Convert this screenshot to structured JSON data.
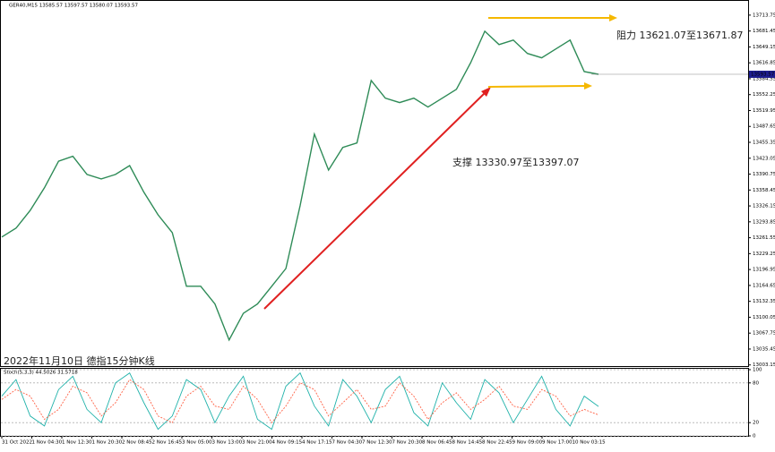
{
  "chart_data": [
    {
      "type": "line",
      "title": "GER40,M15 13585.57 13597.57 13580.07 13593.57",
      "series": [
        {
          "color": "#2e8b57",
          "values": [
            13263,
            13281,
            13317,
            13363,
            13417,
            13427,
            13390,
            13381,
            13390,
            13408,
            13354,
            13308,
            13272,
            13163,
            13163,
            13127,
            13054,
            13108,
            13127,
            13163,
            13199,
            13327,
            13472,
            13399,
            13445,
            13454,
            13581,
            13545,
            13536,
            13545,
            13527,
            13545,
            13563,
            13617,
            13681,
            13654,
            13663,
            13636,
            13627,
            13645,
            13663,
            13599,
            13593.57
          ]
        }
      ],
      "last_price": 13593.57,
      "x_labels": [
        "31 Oct 2022",
        "1 Nov 04:30",
        "1 Nov 12:30",
        "1 Nov 20:30",
        "2 Nov 08:45",
        "2 Nov 16:45",
        "3 Nov 05:00",
        "3 Nov 13:00",
        "3 Nov 21:00",
        "4 Nov 09:15",
        "4 Nov 17:15",
        "7 Nov 04:30",
        "7 Nov 12:30",
        "7 Nov 20:30",
        "8 Nov 06:45",
        "8 Nov 14:45",
        "8 Nov 22:45",
        "9 Nov 09:00",
        "9 Nov 17:00",
        "10 Nov 03:15"
      ],
      "ylim": [
        12999,
        13739
      ],
      "yticks": [
        13713.75,
        13681.45,
        13649.15,
        13616.85,
        13584.55,
        13552.25,
        13519.95,
        13487.65,
        13455.35,
        13423.05,
        13390.75,
        13358.45,
        13326.15,
        13293.85,
        13261.55,
        13229.25,
        13196.95,
        13164.65,
        13132.35,
        13100.05,
        13067.75,
        13035.45,
        13003.15
      ],
      "annotations": [
        "阻力 13621.07至13671.87",
        "支撑 13330.97至13397.07",
        "2022年11月10日 德指15分钟K线"
      ]
    },
    {
      "type": "line",
      "title": "Stoch(5,3,3) 44.5026 31.5718",
      "series": [
        {
          "color": "#20b2aa",
          "values": [
            60,
            85,
            30,
            15,
            70,
            90,
            40,
            20,
            80,
            95,
            50,
            10,
            30,
            85,
            70,
            20,
            60,
            90,
            25,
            10,
            75,
            95,
            45,
            15,
            85,
            60,
            20,
            70,
            90,
            35,
            15,
            80,
            50,
            25,
            85,
            65,
            20,
            55,
            90,
            40,
            15,
            60,
            44.5026
          ]
        },
        {
          "color": "#ff6347",
          "values": [
            55,
            70,
            60,
            25,
            40,
            75,
            65,
            30,
            50,
            85,
            70,
            30,
            20,
            60,
            75,
            45,
            40,
            75,
            55,
            20,
            45,
            80,
            70,
            30,
            50,
            70,
            40,
            45,
            80,
            60,
            25,
            50,
            65,
            40,
            55,
            75,
            45,
            40,
            70,
            60,
            30,
            40,
            31.5718
          ]
        }
      ],
      "ylim": [
        0,
        100
      ],
      "yticks": [
        100,
        80,
        20,
        0
      ]
    }
  ]
}
